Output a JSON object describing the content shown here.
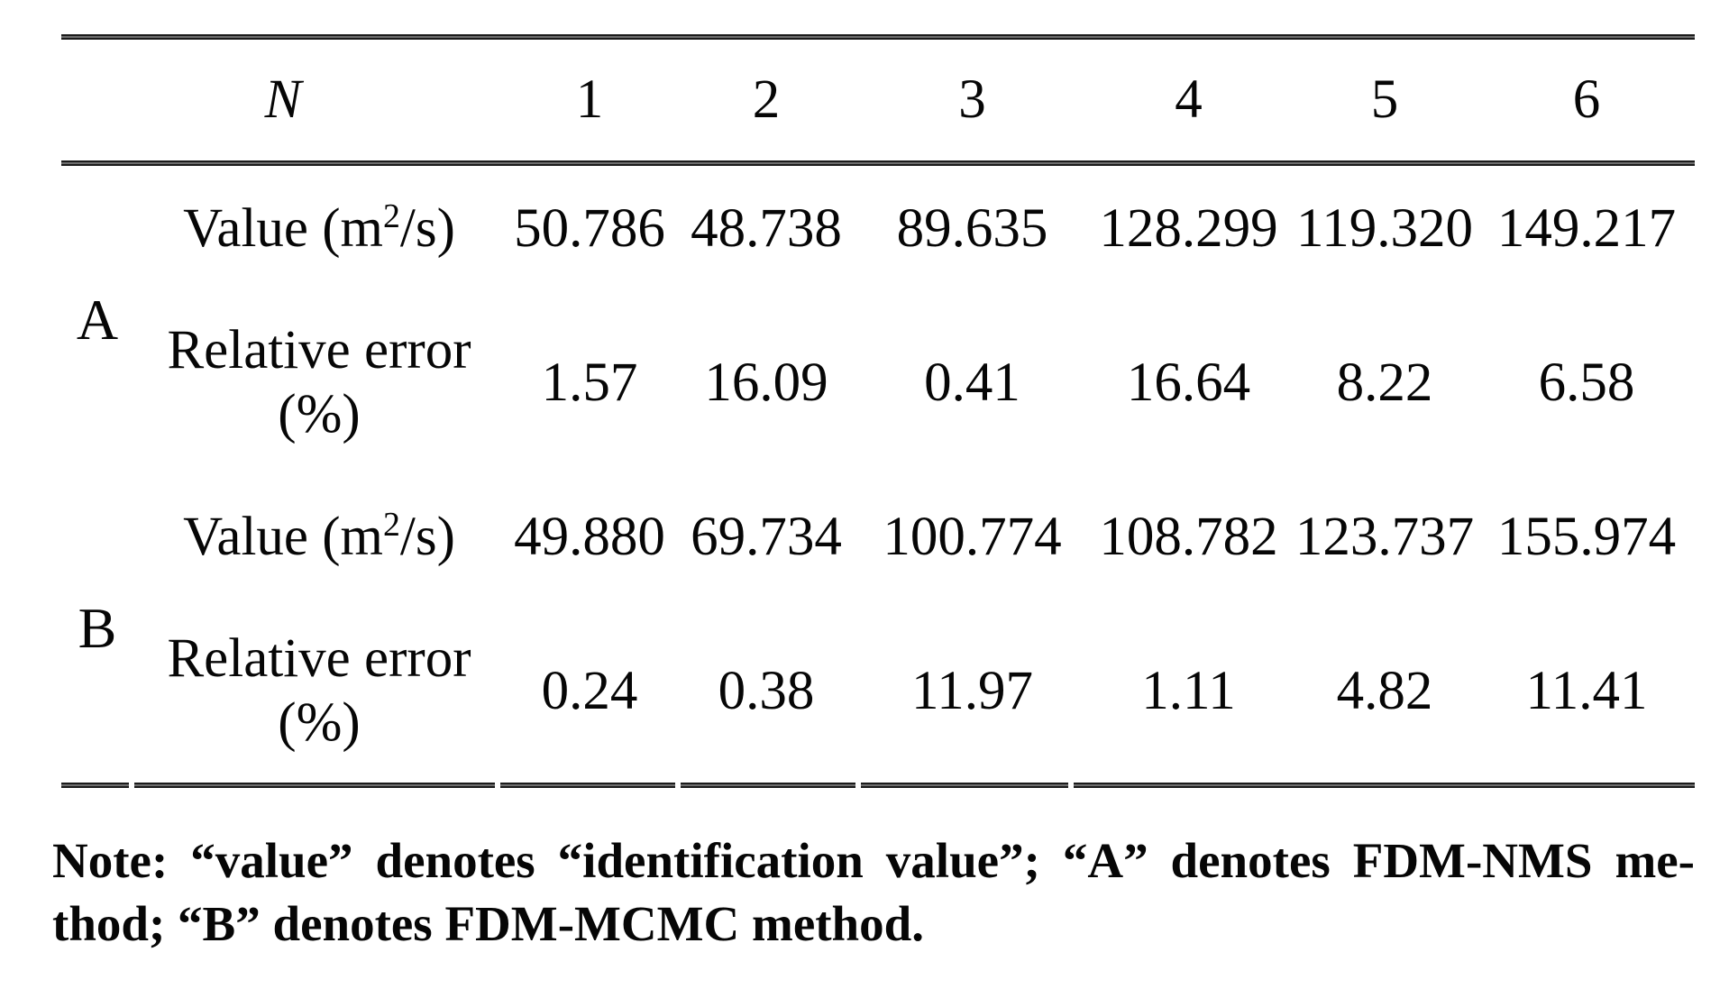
{
  "table": {
    "header": {
      "n_label": "N",
      "cols": [
        "1",
        "2",
        "3",
        "4",
        "5",
        "6"
      ]
    },
    "sections": [
      {
        "id": "A",
        "rows": [
          {
            "label": {
              "pre": "Value (m",
              "sup": "2",
              "post": "/s)"
            },
            "values": [
              "50.786",
              "48.738",
              "89.635",
              "128.299",
              "119.320",
              "149.217"
            ]
          },
          {
            "label": {
              "line1": "Relative error",
              "line2": "(%)"
            },
            "values": [
              "1.57",
              "16.09",
              "0.41",
              "16.64",
              "8.22",
              "6.58"
            ]
          }
        ]
      },
      {
        "id": "B",
        "rows": [
          {
            "label": {
              "pre": "Value (m",
              "sup": "2",
              "post": "/s)"
            },
            "values": [
              "49.880",
              "69.734",
              "100.774",
              "108.782",
              "123.737",
              "155.974"
            ]
          },
          {
            "label": {
              "line1": "Relative error",
              "line2": "(%)"
            },
            "values": [
              "0.24",
              "0.38",
              "11.97",
              "1.11",
              "4.82",
              "11.41"
            ]
          }
        ]
      }
    ]
  },
  "note": {
    "line1": "Note: “value” denotes “identification value”; “A” denotes FDM-NMS me-",
    "line2": "thod; “B” denotes FDM-MCMC method."
  }
}
